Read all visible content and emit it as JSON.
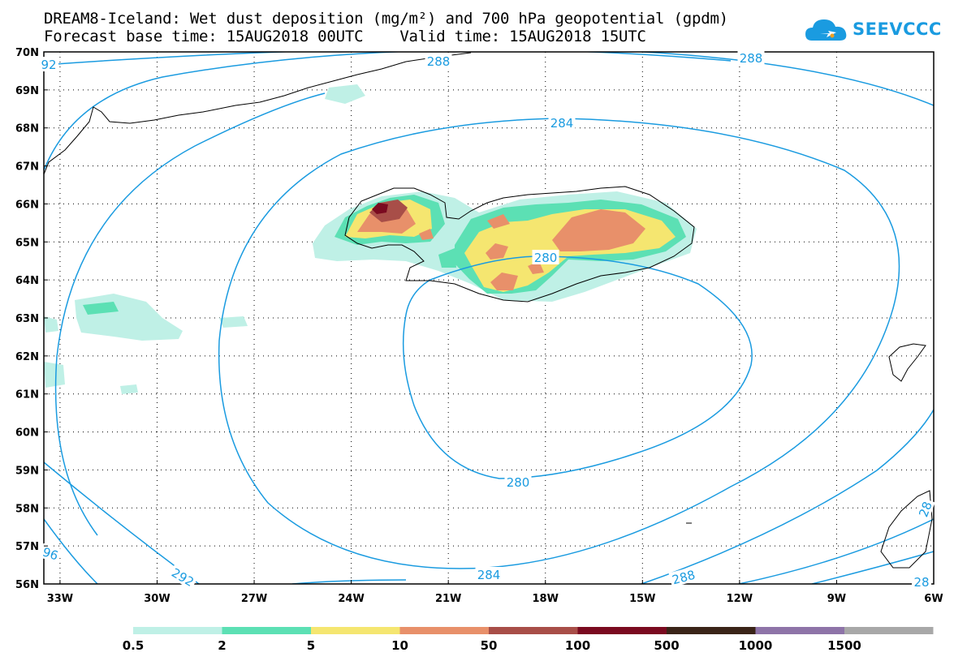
{
  "header": {
    "title_line1": "DREAM8-Iceland: Wet dust deposition (mg/m²) and 700 hPa geopotential (gpdm)",
    "title_line2": "Forecast base time: 15AUG2018 00UTC    Valid time: 15AUG2018 15UTC"
  },
  "logo": {
    "text": "SEEVCCC",
    "icon": "cloud-logo-icon"
  },
  "map": {
    "lat_labels": [
      "70N",
      "69N",
      "68N",
      "67N",
      "66N",
      "65N",
      "64N",
      "63N",
      "62N",
      "61N",
      "60N",
      "59N",
      "58N",
      "57N",
      "56N"
    ],
    "lon_labels": [
      "33W",
      "30W",
      "27W",
      "24W",
      "21W",
      "18W",
      "15W",
      "12W",
      "9W",
      "6W"
    ],
    "contour_color": "#1a9be0",
    "contour_labels": [
      "92",
      "288",
      "288",
      "284",
      "280",
      "280",
      "284",
      "288",
      "292",
      "96",
      "28",
      "28"
    ]
  },
  "legend": {
    "labels": [
      "0.5",
      "2",
      "5",
      "10",
      "50",
      "100",
      "500",
      "1000",
      "1500"
    ],
    "colors": [
      "#bff0e6",
      "#5ce0b4",
      "#f5e670",
      "#e8906a",
      "#a84e48",
      "#7a0a20",
      "#3a2418",
      "#8e74a8",
      "#a8a8a8"
    ]
  }
}
